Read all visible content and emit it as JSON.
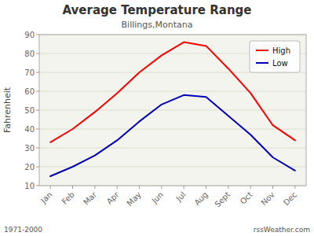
{
  "chart_data": {
    "type": "line",
    "title": "Average Temperature Range",
    "subtitle": "Billings,Montana",
    "ylabel": "Fahrenheit",
    "categories": [
      "Jan",
      "Feb",
      "Mar",
      "Apr",
      "May",
      "Jun",
      "Jul",
      "Aug",
      "Sept",
      "Oct",
      "Nov",
      "Dec"
    ],
    "series": [
      {
        "name": "High",
        "color": "#ff0000",
        "values": [
          33,
          40,
          49,
          59,
          70,
          79,
          86,
          84,
          72,
          59,
          42,
          34
        ]
      },
      {
        "name": "Low",
        "color": "#0000bb",
        "values": [
          15,
          20,
          26,
          34,
          44,
          53,
          58,
          57,
          47,
          37,
          25,
          18
        ]
      }
    ],
    "ylim": [
      10,
      90
    ],
    "yticks": [
      10,
      20,
      30,
      40,
      50,
      60,
      70,
      80,
      90
    ],
    "grid": true,
    "legend": "upper right",
    "annotations": [
      "1971-2000",
      "rssWeather.com"
    ]
  }
}
